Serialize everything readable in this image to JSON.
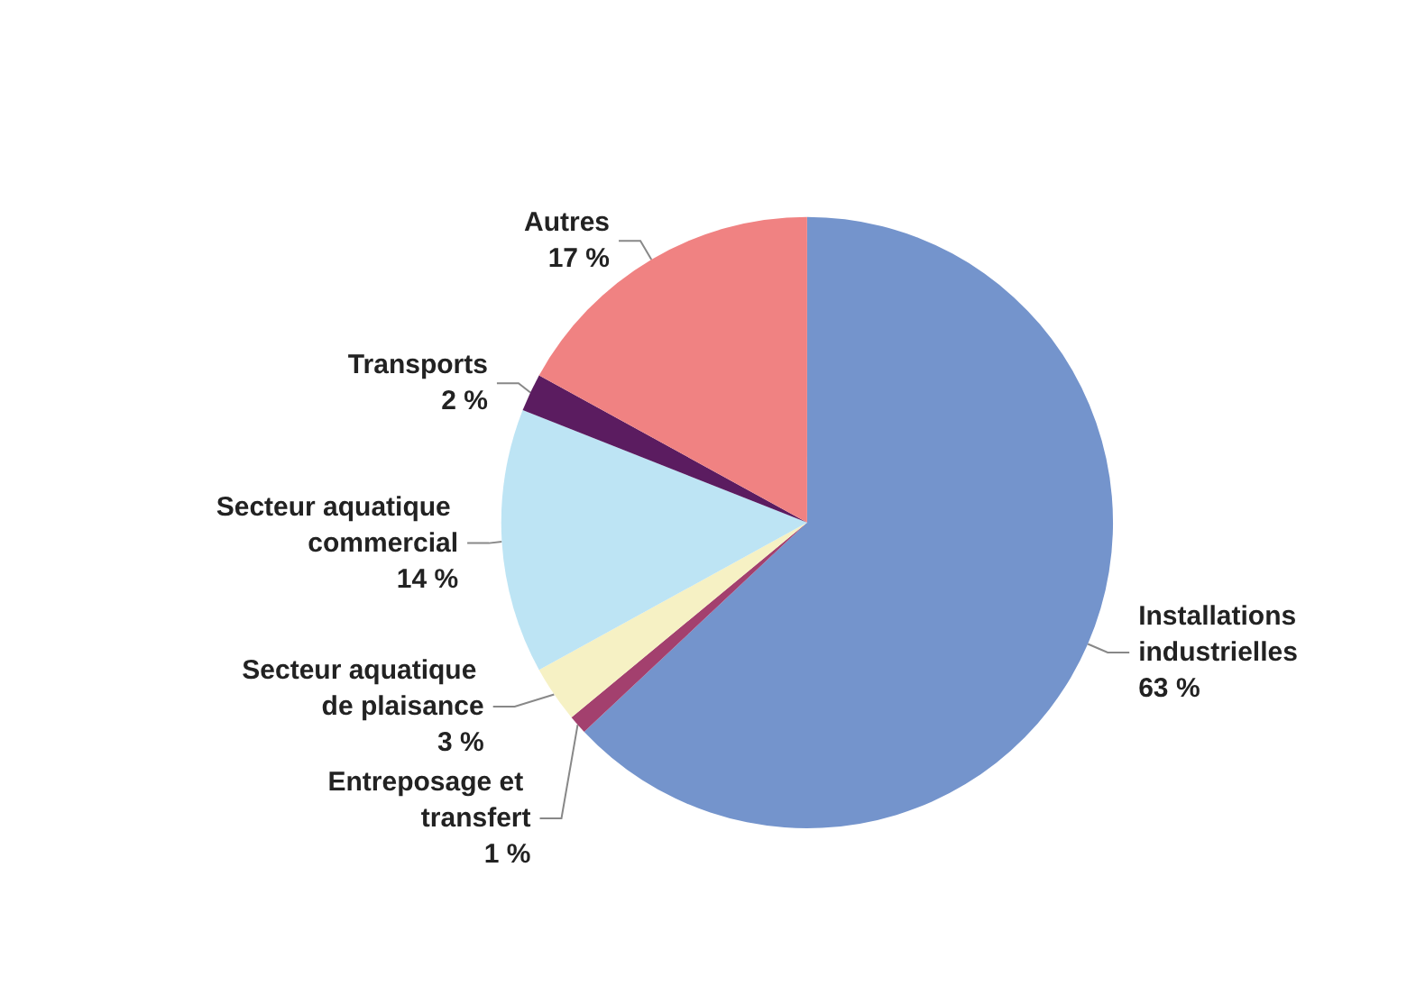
{
  "chart_data": {
    "type": "pie",
    "categories": [
      "Installations industrielles",
      "Entreposage et transfert",
      "Secteur aquatique de plaisance",
      "Secteur aquatique commercial",
      "Transports",
      "Autres"
    ],
    "values": [
      63,
      1,
      3,
      14,
      2,
      17
    ],
    "value_labels": [
      "63 %",
      "1 %",
      "3 %",
      "14 %",
      "2 %",
      "17 %"
    ],
    "colors": [
      "#7494cc",
      "#a3406e",
      "#f6f1c4",
      "#bde4f4",
      "#5b1c60",
      "#f08282"
    ],
    "legend": false
  }
}
